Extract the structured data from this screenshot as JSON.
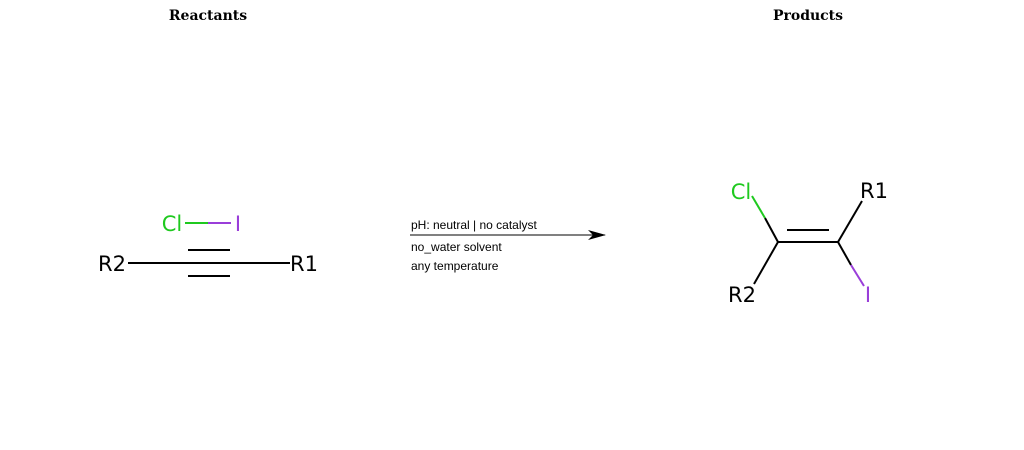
{
  "panels": {
    "reactants_title": "Reactants",
    "products_title": "Products"
  },
  "colors": {
    "chlorine": "#1fc91f",
    "iodine": "#9a3ed9",
    "carbon_bond": "#000000"
  },
  "reactants": {
    "reagent": {
      "atom1": "Cl",
      "atom2": "I"
    },
    "alkyne": {
      "left_group": "R2",
      "right_group": "R1"
    }
  },
  "conditions": {
    "line1": "pH: neutral | no catalyst",
    "line2": "no_water solvent",
    "line3": "any temperature"
  },
  "products": {
    "alkene": {
      "top_left": "Cl",
      "top_right": "R1",
      "bottom_left": "R2",
      "bottom_right": "I"
    }
  }
}
